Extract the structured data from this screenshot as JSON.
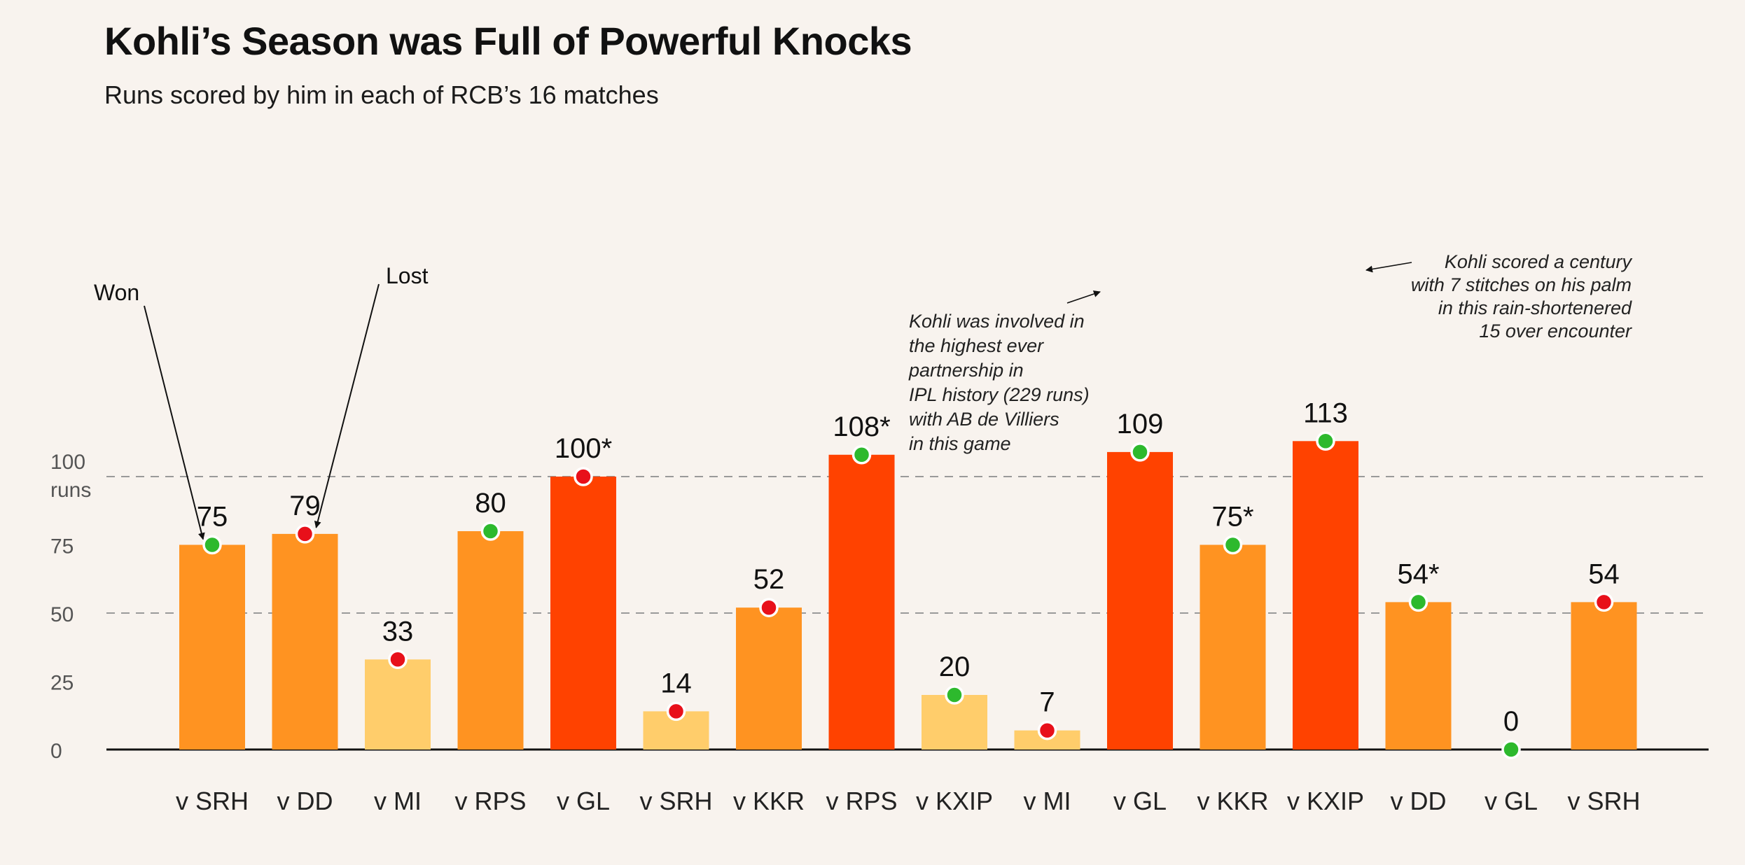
{
  "header": {
    "title": "Kohli’s Season was Full of Powerful Knocks",
    "subtitle": "Runs scored by him in each of RCB’s 16 matches"
  },
  "chart_data": {
    "type": "bar",
    "title": "Kohli’s Season was Full of Powerful Knocks",
    "subtitle": "Runs scored by him in each of RCB’s 16 matches",
    "categories": [
      "v SRH",
      "v DD",
      "v MI",
      "v RPS",
      "v GL",
      "v SRH",
      "v KKR",
      "v RPS",
      "v KXIP",
      "v MI",
      "v GL",
      "v KKR",
      "v KXIP",
      "v DD",
      "v GL",
      "v SRH"
    ],
    "values": [
      75,
      79,
      33,
      80,
      100,
      14,
      52,
      108,
      20,
      7,
      109,
      75,
      113,
      54,
      0,
      54
    ],
    "value_labels": [
      "75",
      "79",
      "33",
      "80",
      "100*",
      "14",
      "52",
      "108*",
      "20",
      "7",
      "109",
      "75*",
      "113",
      "54*",
      "0",
      "54"
    ],
    "results": [
      "Won",
      "Lost",
      "Lost",
      "Won",
      "Lost",
      "Lost",
      "Lost",
      "Won",
      "Won",
      "Lost",
      "Won",
      "Won",
      "Won",
      "Won",
      "Won",
      "Lost"
    ],
    "result_colors": {
      "Won": "#2db92d",
      "Lost": "#e8101a"
    },
    "bar_colors": {
      "low": "#ffcd6b",
      "mid": "#ff9321",
      "century": "#ff4200"
    },
    "ylim": [
      0,
      113
    ],
    "yticks": [
      0,
      25,
      50,
      75,
      100
    ],
    "ytick_labels": [
      "0",
      "25",
      "50",
      "75",
      "100"
    ],
    "yunit_label": "runs",
    "gridlines_at": [
      50,
      100
    ],
    "legend": {
      "won_label": "Won",
      "lost_label": "Lost"
    },
    "annotations": [
      {
        "lines": [
          "Kohli was involved in",
          "the highest ever",
          "partnership in",
          "IPL history (229 runs)",
          "with AB de Villiers",
          "in this game"
        ],
        "target_index": 10
      },
      {
        "lines": [
          "Kohli scored a century",
          "with 7 stitches on his palm",
          "in this rain-shortenered",
          "15 over encounter"
        ],
        "target_index": 12
      }
    ]
  }
}
